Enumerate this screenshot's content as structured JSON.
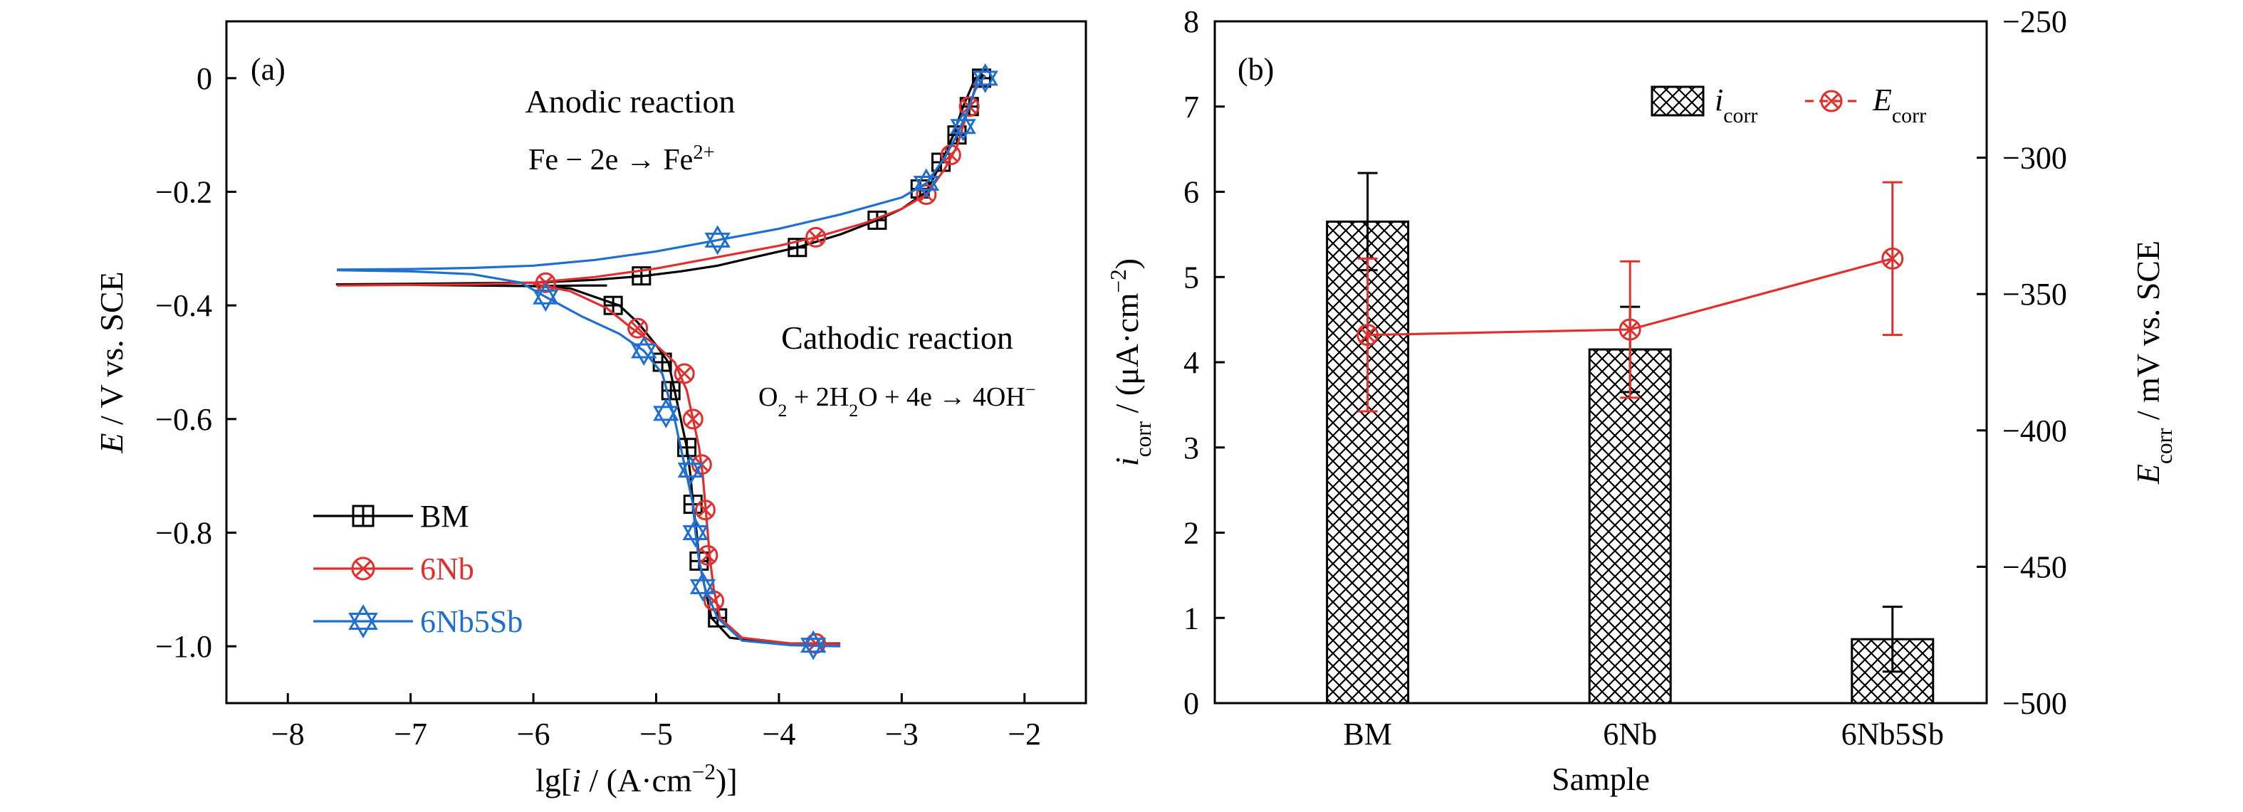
{
  "chart_data": [
    {
      "type": "line",
      "panel_label": "(a)",
      "xlabel": "lg[i / (A·cm⁻²)]",
      "ylabel": "E / V vs. SCE",
      "xlim": [
        -8.5,
        -1.5
      ],
      "ylim": [
        -1.1,
        0.1
      ],
      "xticks": [
        -8,
        -7,
        -6,
        -5,
        -4,
        -3,
        -2
      ],
      "xtick_labels": [
        "−8",
        "−7",
        "−6",
        "−5",
        "−4",
        "−3",
        "−2"
      ],
      "yticks": [
        0,
        -0.2,
        -0.4,
        -0.6,
        -0.8,
        -1.0
      ],
      "ytick_labels": [
        "0",
        "−0.2",
        "−0.4",
        "−0.6",
        "−0.8",
        "−1.0"
      ],
      "annotations": [
        "Anodic reaction",
        "Fe − 2e → Fe²⁺",
        "Cathodic reaction",
        "O₂ + 2H₂O + 4e → 4OH⁻"
      ],
      "legend_position": "bottom-left",
      "series": [
        {
          "name": "BM",
          "color": "#000000",
          "marker": "square-plus",
          "line": [
            [
              -5.4,
              -0.365
            ],
            [
              -5.6,
              -0.365
            ],
            [
              -6,
              -0.366
            ],
            [
              -6.5,
              -0.365
            ],
            [
              -7.0,
              -0.364
            ],
            [
              -7.5,
              -0.364
            ],
            [
              -7.6,
              -0.363
            ],
            [
              -7.0,
              -0.362
            ],
            [
              -6.5,
              -0.361
            ],
            [
              -6.0,
              -0.36
            ],
            [
              -5.5,
              -0.355
            ],
            [
              -5.1,
              -0.348
            ],
            [
              -4.8,
              -0.34
            ],
            [
              -4.5,
              -0.33
            ],
            [
              -4.2,
              -0.315
            ],
            [
              -3.85,
              -0.298
            ],
            [
              -3.5,
              -0.275
            ],
            [
              -3.2,
              -0.25
            ],
            [
              -3.0,
              -0.23
            ],
            [
              -2.8,
              -0.2
            ],
            [
              -2.68,
              -0.15
            ],
            [
              -2.58,
              -0.1
            ],
            [
              -2.5,
              -0.05
            ],
            [
              -2.4,
              0.0
            ],
            [
              -2.33,
              0.005
            ]
          ],
          "line_cathodic": [
            [
              -6.0,
              -0.366
            ],
            [
              -5.7,
              -0.37
            ],
            [
              -5.5,
              -0.385
            ],
            [
              -5.3,
              -0.4
            ],
            [
              -5.15,
              -0.43
            ],
            [
              -5.0,
              -0.47
            ],
            [
              -4.9,
              -0.5
            ],
            [
              -4.85,
              -0.55
            ],
            [
              -4.8,
              -0.6
            ],
            [
              -4.75,
              -0.65
            ],
            [
              -4.72,
              -0.7
            ],
            [
              -4.7,
              -0.75
            ],
            [
              -4.67,
              -0.8
            ],
            [
              -4.65,
              -0.85
            ],
            [
              -4.6,
              -0.9
            ],
            [
              -4.55,
              -0.95
            ],
            [
              -4.4,
              -0.985
            ],
            [
              -4.0,
              -0.995
            ],
            [
              -3.5,
              -0.995
            ]
          ],
          "markers": [
            [
              -5.12,
              -0.348
            ],
            [
              -3.85,
              -0.298
            ],
            [
              -3.2,
              -0.25
            ],
            [
              -2.85,
              -0.195
            ],
            [
              -2.68,
              -0.148
            ],
            [
              -2.55,
              -0.1
            ],
            [
              -2.45,
              -0.05
            ],
            [
              -2.35,
              0.0
            ],
            [
              -5.35,
              -0.4
            ],
            [
              -4.95,
              -0.5
            ],
            [
              -4.88,
              -0.55
            ],
            [
              -4.75,
              -0.65
            ],
            [
              -4.7,
              -0.75
            ],
            [
              -4.65,
              -0.85
            ],
            [
              -4.5,
              -0.95
            ]
          ]
        },
        {
          "name": "6Nb",
          "color": "#e0302d",
          "marker": "circle-x",
          "line": [
            [
              -7.6,
              -0.365
            ],
            [
              -7.0,
              -0.364
            ],
            [
              -6.5,
              -0.363
            ],
            [
              -6.0,
              -0.36
            ],
            [
              -5.5,
              -0.35
            ],
            [
              -5.0,
              -0.335
            ],
            [
              -4.5,
              -0.315
            ],
            [
              -4.0,
              -0.295
            ],
            [
              -3.7,
              -0.28
            ],
            [
              -3.3,
              -0.255
            ],
            [
              -3.0,
              -0.23
            ],
            [
              -2.8,
              -0.205
            ],
            [
              -2.65,
              -0.16
            ],
            [
              -2.55,
              -0.12
            ],
            [
              -2.48,
              -0.07
            ],
            [
              -2.42,
              -0.03
            ],
            [
              -2.38,
              0.0
            ]
          ],
          "line_cathodic": [
            [
              -6.0,
              -0.362
            ],
            [
              -5.7,
              -0.375
            ],
            [
              -5.4,
              -0.405
            ],
            [
              -5.2,
              -0.44
            ],
            [
              -5.0,
              -0.47
            ],
            [
              -4.85,
              -0.5
            ],
            [
              -4.75,
              -0.55
            ],
            [
              -4.7,
              -0.6
            ],
            [
              -4.65,
              -0.65
            ],
            [
              -4.62,
              -0.7
            ],
            [
              -4.6,
              -0.75
            ],
            [
              -4.58,
              -0.8
            ],
            [
              -4.56,
              -0.85
            ],
            [
              -4.53,
              -0.9
            ],
            [
              -4.48,
              -0.95
            ],
            [
              -4.3,
              -0.985
            ],
            [
              -3.9,
              -0.995
            ],
            [
              -3.5,
              -0.996
            ]
          ],
          "markers": [
            [
              -5.9,
              -0.36
            ],
            [
              -3.7,
              -0.28
            ],
            [
              -2.8,
              -0.205
            ],
            [
              -2.6,
              -0.135
            ],
            [
              -2.45,
              -0.05
            ],
            [
              -5.15,
              -0.44
            ],
            [
              -4.77,
              -0.52
            ],
            [
              -4.7,
              -0.6
            ],
            [
              -4.63,
              -0.68
            ],
            [
              -4.6,
              -0.76
            ],
            [
              -4.58,
              -0.84
            ],
            [
              -4.53,
              -0.92
            ],
            [
              -3.7,
              -0.995
            ]
          ]
        },
        {
          "name": "6Nb5Sb",
          "color": "#1f6fd0",
          "marker": "star",
          "line": [
            [
              -7.6,
              -0.337
            ],
            [
              -7.0,
              -0.336
            ],
            [
              -6.5,
              -0.334
            ],
            [
              -6.0,
              -0.33
            ],
            [
              -5.5,
              -0.32
            ],
            [
              -5.0,
              -0.305
            ],
            [
              -4.5,
              -0.285
            ],
            [
              -4.0,
              -0.265
            ],
            [
              -3.5,
              -0.24
            ],
            [
              -3.0,
              -0.21
            ],
            [
              -2.8,
              -0.185
            ],
            [
              -2.65,
              -0.14
            ],
            [
              -2.55,
              -0.1
            ],
            [
              -2.47,
              -0.06
            ],
            [
              -2.4,
              -0.02
            ],
            [
              -2.32,
              0.005
            ]
          ],
          "line_cathodic": [
            [
              -7.6,
              -0.338
            ],
            [
              -7.0,
              -0.34
            ],
            [
              -6.5,
              -0.345
            ],
            [
              -6.1,
              -0.36
            ],
            [
              -5.9,
              -0.385
            ],
            [
              -5.6,
              -0.42
            ],
            [
              -5.3,
              -0.45
            ],
            [
              -5.1,
              -0.48
            ],
            [
              -4.95,
              -0.52
            ],
            [
              -4.9,
              -0.56
            ],
            [
              -4.85,
              -0.6
            ],
            [
              -4.8,
              -0.65
            ],
            [
              -4.75,
              -0.7
            ],
            [
              -4.7,
              -0.75
            ],
            [
              -4.68,
              -0.8
            ],
            [
              -4.65,
              -0.85
            ],
            [
              -4.6,
              -0.9
            ],
            [
              -4.5,
              -0.95
            ],
            [
              -4.3,
              -0.99
            ],
            [
              -3.9,
              -0.998
            ],
            [
              -3.5,
              -1.0
            ]
          ],
          "markers": [
            [
              -4.5,
              -0.285
            ],
            [
              -2.8,
              -0.185
            ],
            [
              -2.5,
              -0.085
            ],
            [
              -2.32,
              0.0
            ],
            [
              -5.9,
              -0.385
            ],
            [
              -5.1,
              -0.48
            ],
            [
              -4.92,
              -0.59
            ],
            [
              -4.72,
              -0.69
            ],
            [
              -4.68,
              -0.8
            ],
            [
              -4.62,
              -0.895
            ],
            [
              -3.72,
              -0.998
            ]
          ]
        }
      ]
    },
    {
      "type": "bar",
      "panel_label": "(b)",
      "xlabel": "Sample",
      "ylabel": "i_corr / (μA·cm⁻²)",
      "ylabel2": "E_corr / mV vs. SCE",
      "categories": [
        "BM",
        "6Nb",
        "6Nb5Sb"
      ],
      "ylim": [
        0,
        8
      ],
      "yticks": [
        0,
        1,
        2,
        3,
        4,
        5,
        6,
        7,
        8
      ],
      "ytick_labels": [
        "0",
        "1",
        "2",
        "3",
        "4",
        "5",
        "6",
        "7",
        "8"
      ],
      "y2lim": [
        -500,
        -250
      ],
      "y2ticks": [
        -250,
        -300,
        -350,
        -400,
        -450,
        -500
      ],
      "y2tick_labels": [
        "−250",
        "−300",
        "−350",
        "−400",
        "−450",
        "−500"
      ],
      "legend_position": "top-right",
      "series": [
        {
          "name": "i_corr",
          "axis": "left",
          "style": "crosshatch-bar",
          "values": [
            5.65,
            4.15,
            0.75
          ],
          "errors": [
            0.57,
            0.5,
            0.38
          ]
        },
        {
          "name": "E_corr",
          "axis": "right",
          "style": "line-circle-x",
          "color": "#e0302d",
          "values": [
            -365,
            -363,
            -337
          ],
          "errors": [
            28,
            25,
            28
          ]
        }
      ]
    }
  ]
}
